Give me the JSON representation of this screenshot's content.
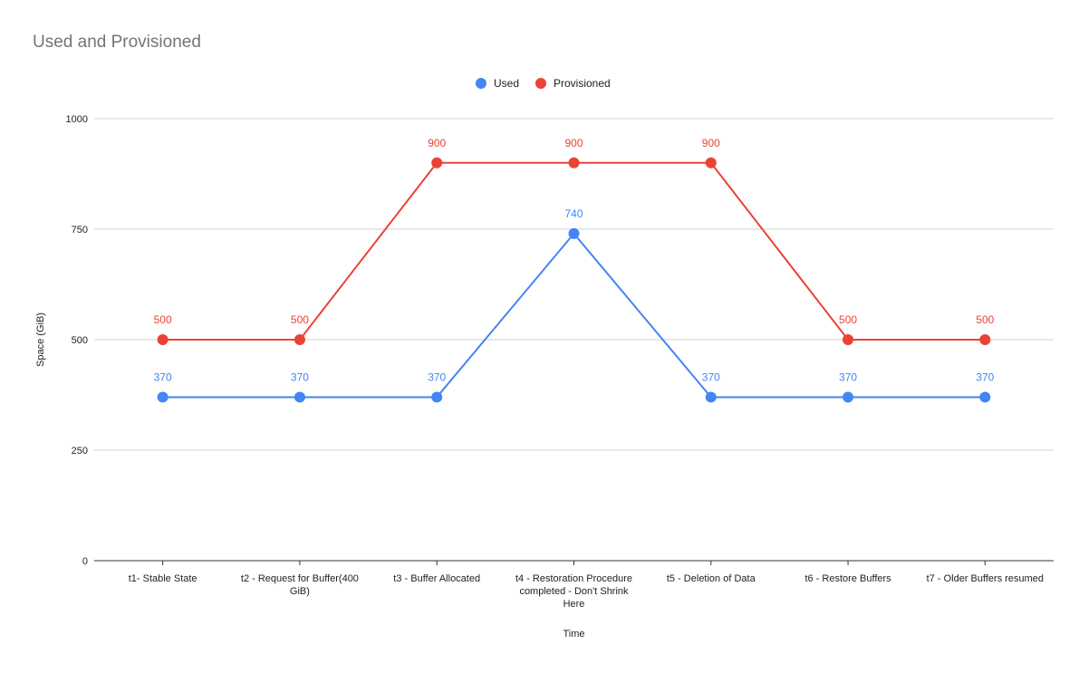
{
  "chart_data": {
    "type": "line",
    "title": "Used and Provisioned",
    "xlabel": "Time",
    "ylabel": "Space (GiB)",
    "ylim": [
      0,
      1000
    ],
    "yticks": [
      0,
      250,
      500,
      750,
      1000
    ],
    "grid": true,
    "legend_position": "top-center",
    "categories": [
      "t1- Stable State",
      "t2 - Request for Buffer(400 GiB)",
      "t3 - Buffer Allocated",
      "t4 - Restoration Procedure completed - Don't Shrink Here",
      "t5 - Deletion of Data",
      "t6 - Restore Buffers",
      "t7 - Older Buffers resumed"
    ],
    "series": [
      {
        "name": "Used",
        "color": "#4285f4",
        "values": [
          370,
          370,
          370,
          740,
          370,
          370,
          370
        ]
      },
      {
        "name": "Provisioned",
        "color": "#ea4335",
        "values": [
          500,
          500,
          900,
          900,
          900,
          500,
          500
        ]
      }
    ]
  }
}
